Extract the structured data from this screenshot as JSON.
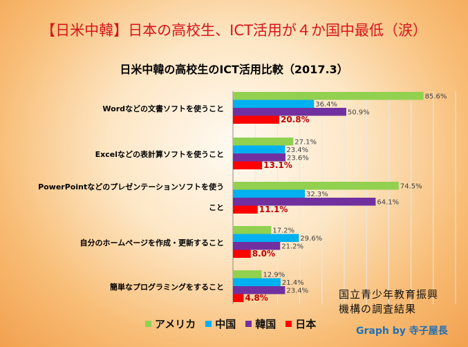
{
  "header": {
    "title": "【日米中韓】日本の高校生、ICT活用が４か国中最低（涙）"
  },
  "source_note": {
    "line1": "国立青少年教育振興",
    "line2": "機構の調査結果"
  },
  "credit": "Graph by 寺子屋長",
  "chart_data": {
    "type": "bar",
    "orientation": "horizontal",
    "title": "日米中韓の高校生のICT活用比較（2017.3）",
    "categories": [
      [
        "Wordなどの文書ソフトを使うこと"
      ],
      [
        "Excelなどの表計算ソフトを使うこと"
      ],
      [
        "PowerPointなどのプレゼンテーションソフトを使う",
        "こと"
      ],
      [
        "自分のホームページを作成・更新すること"
      ],
      [
        "簡単なプログラミングをすること"
      ]
    ],
    "series": [
      {
        "name": "アメリカ",
        "color": "#92d050",
        "values": [
          85.6,
          27.1,
          74.5,
          17.2,
          12.9
        ]
      },
      {
        "name": "中国",
        "color": "#00b0f0",
        "values": [
          36.4,
          23.4,
          32.3,
          29.6,
          21.4
        ]
      },
      {
        "name": "韓国",
        "color": "#7030a0",
        "values": [
          50.9,
          23.6,
          64.1,
          21.2,
          23.4
        ]
      },
      {
        "name": "日本",
        "color": "#ff0000",
        "values": [
          20.8,
          13.1,
          11.1,
          8.0,
          4.8
        ]
      }
    ],
    "value_suffix": "%",
    "xlim": [
      0,
      100
    ],
    "grid": true,
    "legend_position": "bottom"
  }
}
